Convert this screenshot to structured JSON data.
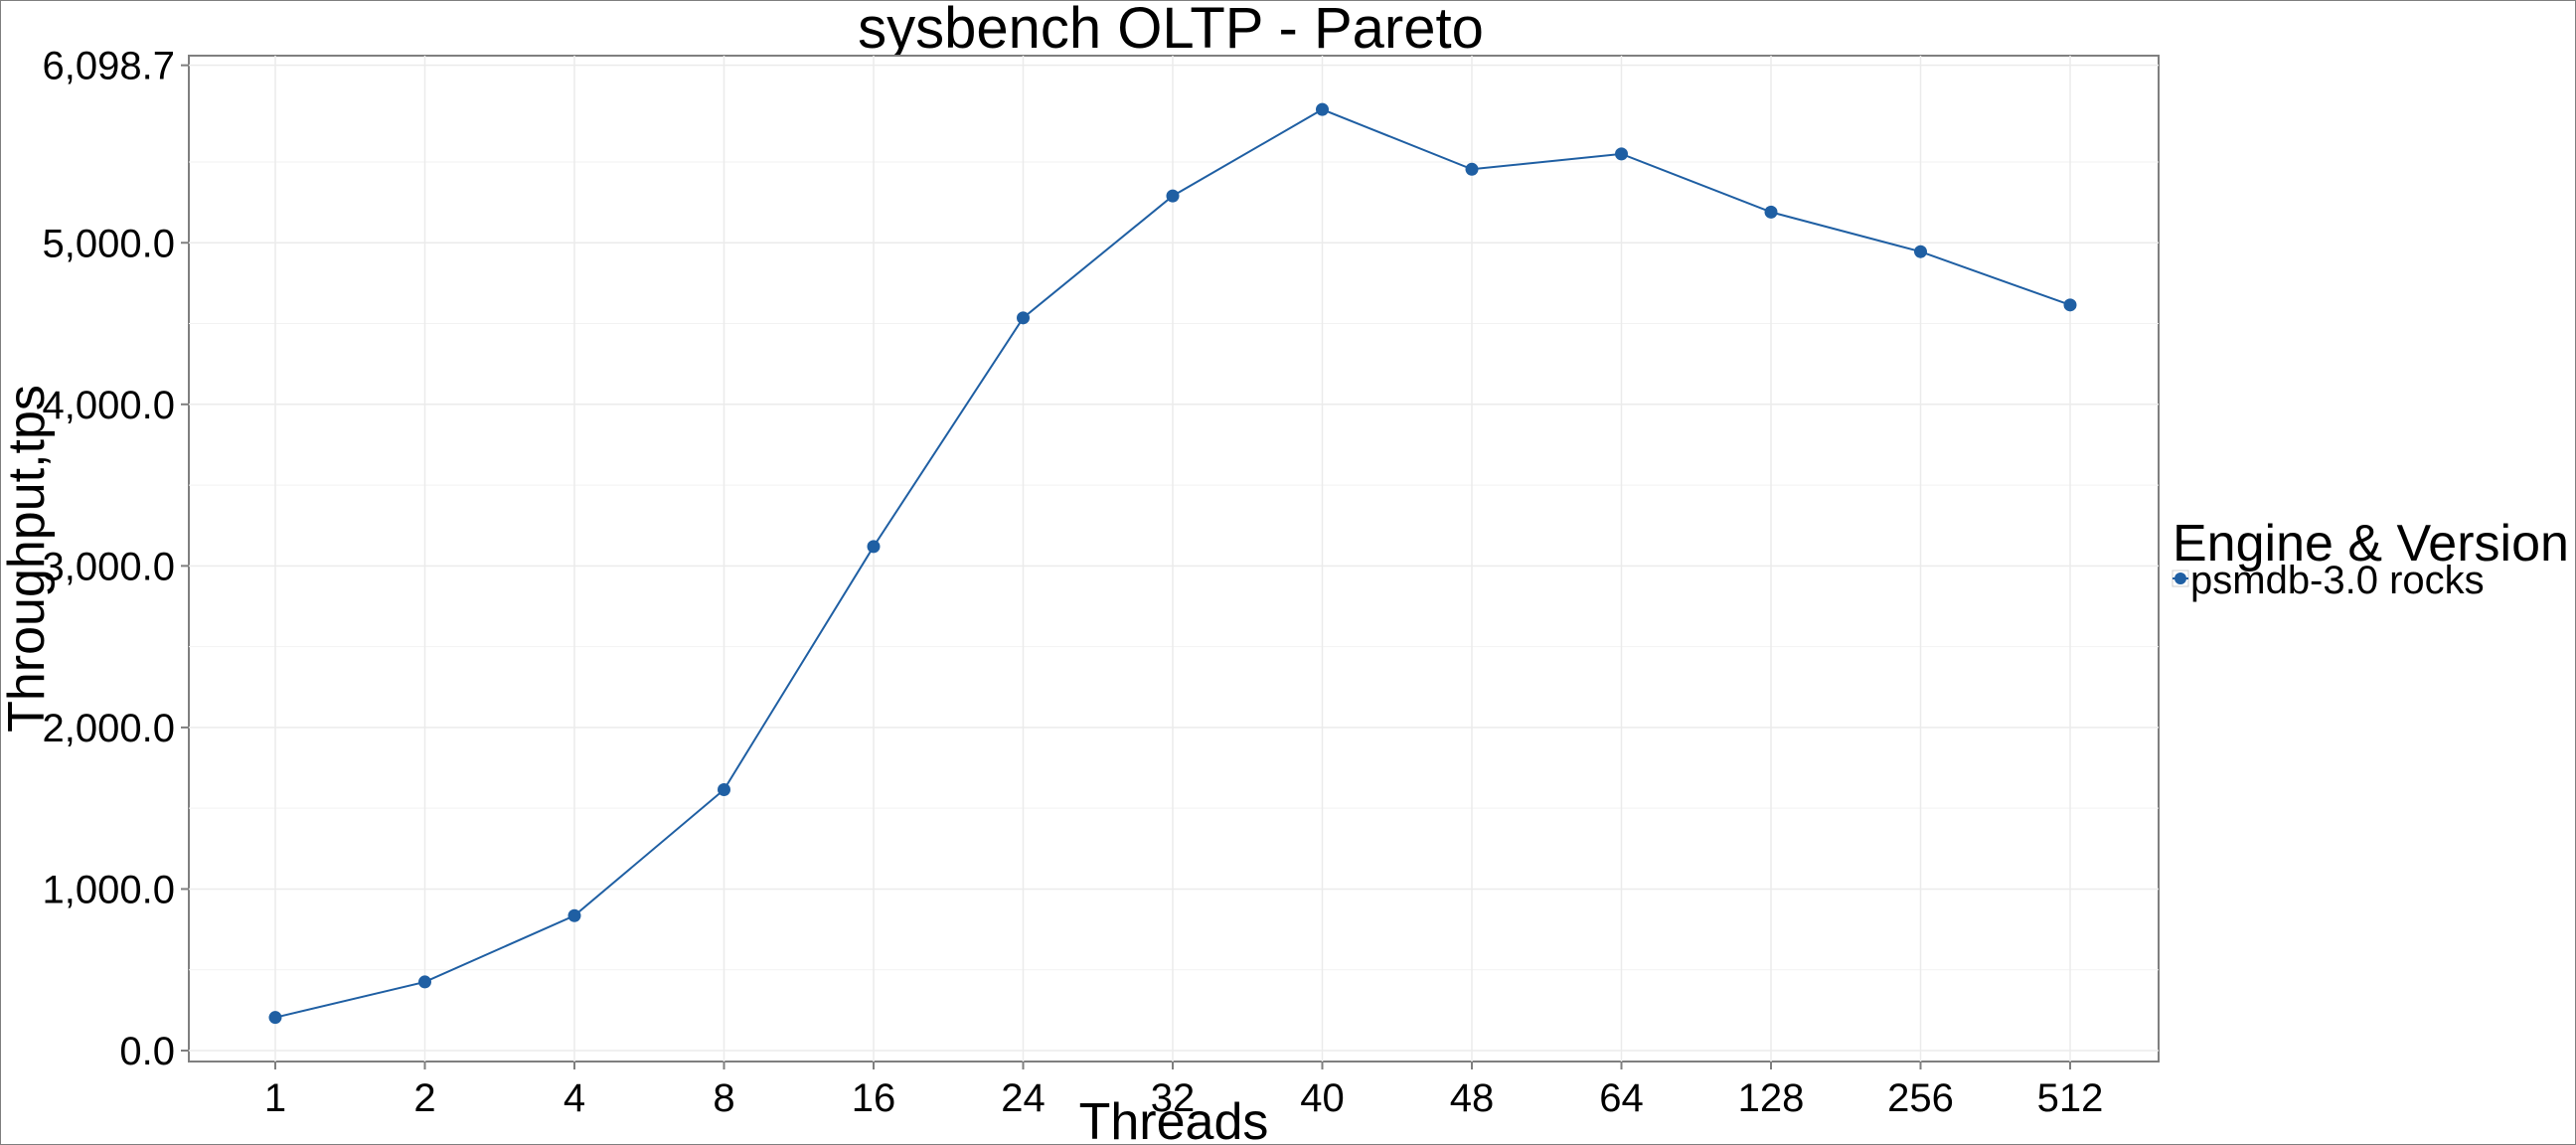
{
  "chart_data": {
    "type": "line",
    "title": "sysbench OLTP - Pareto",
    "xlabel": "Threads",
    "ylabel": "Throughput,tps",
    "categories": [
      "1",
      "2",
      "4",
      "8",
      "16",
      "24",
      "32",
      "40",
      "48",
      "64",
      "128",
      "256",
      "512"
    ],
    "series": [
      {
        "name": "psmdb-3.0 rocks",
        "values": [
          205,
          425,
          835,
          1615,
          3120,
          4535,
          5290,
          5825,
          5455,
          5550,
          5190,
          4945,
          4615
        ]
      }
    ],
    "ylim": [
      0,
      6098.7
    ],
    "yticks": [
      "0.0",
      "1,000.0",
      "2,000.0",
      "3,000.0",
      "4,000.0",
      "5,000.0",
      "6,098.7"
    ],
    "ytick_values": [
      0,
      1000,
      2000,
      3000,
      4000,
      5000,
      6098.7
    ],
    "grid": true,
    "legend": {
      "title": "Engine & Version",
      "position": "right"
    },
    "colors": {
      "series": "#1f5fa3",
      "grid": "#ebebeb",
      "panel_border": "#7f7f7f"
    }
  }
}
